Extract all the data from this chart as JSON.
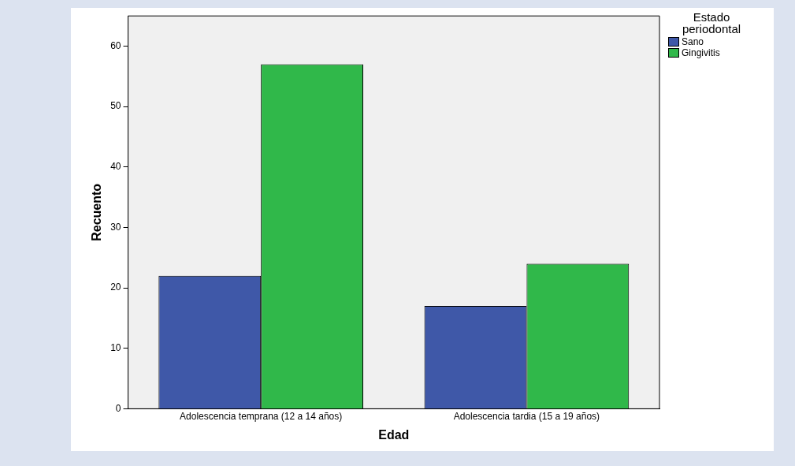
{
  "chart_data": {
    "type": "bar",
    "categories": [
      "Adolescencia temprana (12 a 14 años)",
      "Adolescencia tardia (15 a 19 años)"
    ],
    "series": [
      {
        "name": "Sano",
        "color": "#3f58a8",
        "values": [
          22,
          17
        ]
      },
      {
        "name": "Gingivitis",
        "color": "#30b84a",
        "values": [
          57,
          24
        ]
      }
    ],
    "xlabel": "Edad",
    "ylabel": "Recuento",
    "legend_title": "Estado periodontal",
    "legend": "top right",
    "grid": false,
    "ylim": [
      0,
      65
    ],
    "yticks": [
      0,
      10,
      20,
      30,
      40,
      50,
      60
    ]
  }
}
